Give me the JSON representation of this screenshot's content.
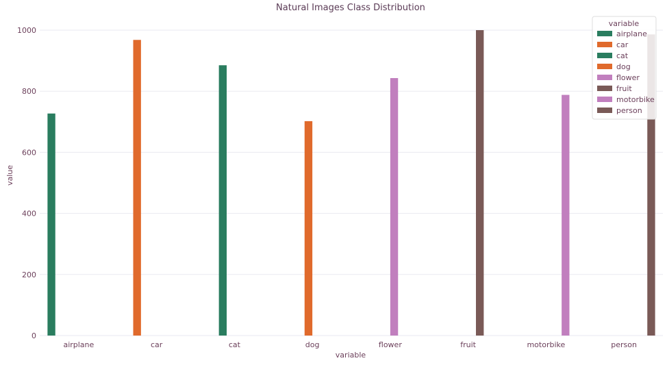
{
  "chart_data": {
    "type": "bar",
    "title": "Natural Images Class Distribution",
    "xlabel": "variable",
    "ylabel": "value",
    "ylim": [
      0,
      1000
    ],
    "yticks": [
      0,
      200,
      400,
      600,
      800,
      1000
    ],
    "grid": "horizontal",
    "categories": [
      "airplane",
      "car",
      "cat",
      "dog",
      "flower",
      "fruit",
      "motorbike",
      "person"
    ],
    "series": [
      {
        "name": "airplane",
        "color": "#2a7d5f",
        "values": [
          727,
          0,
          0,
          0,
          0,
          0,
          0,
          0
        ]
      },
      {
        "name": "car",
        "color": "#e06a2c",
        "values": [
          0,
          968,
          0,
          0,
          0,
          0,
          0,
          0
        ]
      },
      {
        "name": "cat",
        "color": "#2a7d5f",
        "values": [
          0,
          0,
          885,
          0,
          0,
          0,
          0,
          0
        ]
      },
      {
        "name": "dog",
        "color": "#e06a2c",
        "values": [
          0,
          0,
          0,
          702,
          0,
          0,
          0,
          0
        ]
      },
      {
        "name": "flower",
        "color": "#c17fbe",
        "values": [
          0,
          0,
          0,
          0,
          843,
          0,
          0,
          0
        ]
      },
      {
        "name": "fruit",
        "color": "#7a5a57",
        "values": [
          0,
          0,
          0,
          0,
          0,
          1000,
          0,
          0
        ]
      },
      {
        "name": "motorbike",
        "color": "#c17fbe",
        "values": [
          0,
          0,
          0,
          0,
          0,
          0,
          788,
          0
        ]
      },
      {
        "name": "person",
        "color": "#7a5a57",
        "values": [
          0,
          0,
          0,
          0,
          0,
          0,
          0,
          986
        ]
      }
    ],
    "legend": {
      "title": "variable",
      "placement": "top-right"
    }
  }
}
